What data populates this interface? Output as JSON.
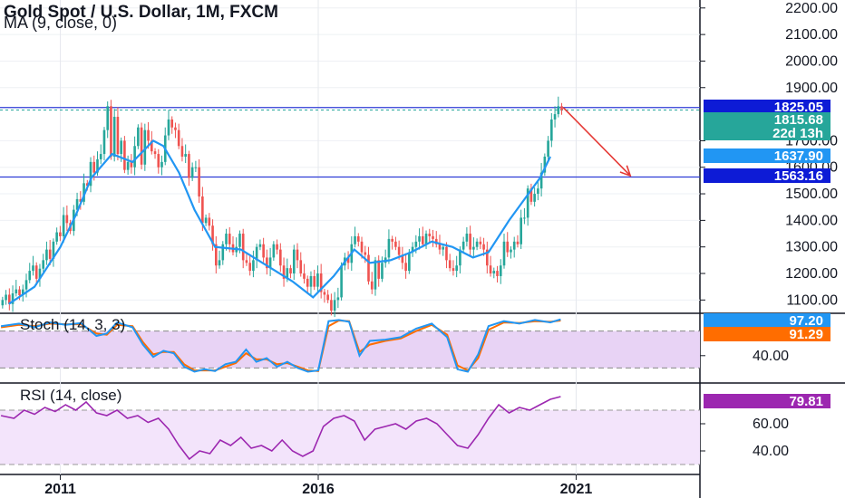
{
  "chart_data": {
    "type": "candlestick",
    "title": "Gold Spot / U.S. Dollar, 1M, FXCM",
    "subtitle": "MA (9, close, 0)",
    "y_ticks": [
      "2200.00",
      "2100.00",
      "2000.00",
      "1900.00",
      "1700.00",
      "1600.00",
      "1500.00",
      "1400.00",
      "1300.00",
      "1200.00",
      "1100.00"
    ],
    "x_ticks": [
      "2011",
      "2016",
      "2021"
    ],
    "ylim": [
      1050,
      2230
    ],
    "xlim": [
      2009.83,
      2023.4
    ],
    "price_tags": [
      {
        "label": "1825.05",
        "value": 1825.05,
        "color": "#0d1bd6"
      },
      {
        "label": "1815.68",
        "value": 1815.68,
        "color": "#26a69a"
      },
      {
        "label": "22d 13h",
        "value": 1768,
        "color": "#26a69a"
      },
      {
        "label": "1637.90",
        "value": 1637.9,
        "color": "#2196f3"
      },
      {
        "label": "1563.16",
        "value": 1563.16,
        "color": "#0d1bd6"
      }
    ],
    "horizontal_lines": [
      {
        "value": 1825.05,
        "color": "#2d3cd6"
      },
      {
        "value": 1563.16,
        "color": "#2d3cd6"
      }
    ],
    "arrow": {
      "from": [
        2020.75,
        1825
      ],
      "to": [
        2022.05,
        1568
      ],
      "color": "#e53935"
    },
    "candles_close": [
      1100,
      1120,
      1085,
      1125,
      1140,
      1118,
      1140,
      1175,
      1210,
      1230,
      1180,
      1218,
      1250,
      1290,
      1255,
      1320,
      1355,
      1340,
      1420,
      1390,
      1360,
      1440,
      1480,
      1470,
      1540,
      1530,
      1620,
      1580,
      1630,
      1650,
      1740,
      1830,
      1640,
      1790,
      1650,
      1700,
      1590,
      1620,
      1600,
      1680,
      1750,
      1610,
      1740,
      1700,
      1660,
      1650,
      1600,
      1620,
      1720,
      1780,
      1750,
      1740,
      1680,
      1640,
      1650,
      1560,
      1600,
      1600,
      1490,
      1390,
      1410,
      1380,
      1310,
      1230,
      1250,
      1310,
      1350,
      1310,
      1280,
      1300,
      1350,
      1250,
      1240,
      1210,
      1250,
      1300,
      1310,
      1260,
      1220,
      1260,
      1310,
      1290,
      1230,
      1180,
      1220,
      1200,
      1290,
      1250,
      1200,
      1180,
      1150,
      1190,
      1150,
      1200,
      1130,
      1120,
      1100,
      1060,
      1100,
      1110,
      1230,
      1260,
      1240,
      1310,
      1340,
      1320,
      1280,
      1270,
      1170,
      1140,
      1250,
      1180,
      1240,
      1260,
      1330,
      1320,
      1300,
      1270,
      1240,
      1210,
      1280,
      1300,
      1320,
      1340,
      1310,
      1350,
      1340,
      1330,
      1310,
      1290,
      1300,
      1250,
      1220,
      1210,
      1230,
      1290,
      1320,
      1350,
      1290,
      1300,
      1320,
      1310,
      1290,
      1230,
      1200,
      1210,
      1190,
      1230,
      1320,
      1280,
      1290,
      1320,
      1310,
      1410,
      1410,
      1520,
      1470,
      1500,
      1520,
      1580,
      1640,
      1700,
      1780,
      1800,
      1830,
      1815.68
    ],
    "ma_points": [
      [
        2010.0,
        1085
      ],
      [
        2010.5,
        1150
      ],
      [
        2011.0,
        1300
      ],
      [
        2011.3,
        1420
      ],
      [
        2011.6,
        1560
      ],
      [
        2012.0,
        1650
      ],
      [
        2012.4,
        1620
      ],
      [
        2012.8,
        1700
      ],
      [
        2013.0,
        1680
      ],
      [
        2013.3,
        1580
      ],
      [
        2013.6,
        1440
      ],
      [
        2014.0,
        1300
      ],
      [
        2014.5,
        1290
      ],
      [
        2015.0,
        1230
      ],
      [
        2015.5,
        1170
      ],
      [
        2015.9,
        1110
      ],
      [
        2016.3,
        1190
      ],
      [
        2016.7,
        1290
      ],
      [
        2017.0,
        1240
      ],
      [
        2017.4,
        1250
      ],
      [
        2017.8,
        1280
      ],
      [
        2018.2,
        1320
      ],
      [
        2018.6,
        1300
      ],
      [
        2019.0,
        1260
      ],
      [
        2019.3,
        1280
      ],
      [
        2019.7,
        1400
      ],
      [
        2020.0,
        1480
      ],
      [
        2020.3,
        1560
      ],
      [
        2020.5,
        1640
      ]
    ],
    "stoch": {
      "title": "Stoch (14, 3, 3)",
      "k_label": "97.20",
      "d_label": "91.29",
      "k_color": "#2196f3",
      "d_color": "#ff6d00",
      "tick": "40.00",
      "band": [
        20,
        80
      ],
      "ylim": [
        0,
        100
      ],
      "k": [
        [
          2009.85,
          88
        ],
        [
          2010.2,
          92
        ],
        [
          2010.5,
          86
        ],
        [
          2010.8,
          94
        ],
        [
          2011.1,
          90
        ],
        [
          2011.4,
          93
        ],
        [
          2011.7,
          72
        ],
        [
          2011.9,
          76
        ],
        [
          2012.1,
          94
        ],
        [
          2012.4,
          86
        ],
        [
          2012.6,
          58
        ],
        [
          2012.8,
          38
        ],
        [
          2013.0,
          48
        ],
        [
          2013.2,
          44
        ],
        [
          2013.4,
          22
        ],
        [
          2013.6,
          14
        ],
        [
          2013.8,
          18
        ],
        [
          2014.0,
          15
        ],
        [
          2014.2,
          26
        ],
        [
          2014.4,
          30
        ],
        [
          2014.6,
          50
        ],
        [
          2014.8,
          30
        ],
        [
          2015.0,
          36
        ],
        [
          2015.2,
          22
        ],
        [
          2015.4,
          30
        ],
        [
          2015.6,
          20
        ],
        [
          2015.8,
          14
        ],
        [
          2016.0,
          16
        ],
        [
          2016.2,
          96
        ],
        [
          2016.4,
          98
        ],
        [
          2016.6,
          95
        ],
        [
          2016.8,
          40
        ],
        [
          2017.0,
          64
        ],
        [
          2017.3,
          66
        ],
        [
          2017.6,
          70
        ],
        [
          2017.9,
          84
        ],
        [
          2018.2,
          92
        ],
        [
          2018.5,
          70
        ],
        [
          2018.7,
          18
        ],
        [
          2018.9,
          14
        ],
        [
          2019.1,
          42
        ],
        [
          2019.3,
          88
        ],
        [
          2019.6,
          96
        ],
        [
          2019.9,
          92
        ],
        [
          2020.2,
          98
        ],
        [
          2020.5,
          94
        ],
        [
          2020.7,
          99
        ]
      ],
      "d": [
        [
          2009.85,
          86
        ],
        [
          2010.2,
          90
        ],
        [
          2010.5,
          88
        ],
        [
          2010.8,
          92
        ],
        [
          2011.1,
          91
        ],
        [
          2011.4,
          91
        ],
        [
          2011.7,
          76
        ],
        [
          2011.9,
          74
        ],
        [
          2012.1,
          90
        ],
        [
          2012.4,
          88
        ],
        [
          2012.6,
          62
        ],
        [
          2012.8,
          42
        ],
        [
          2013.0,
          46
        ],
        [
          2013.2,
          46
        ],
        [
          2013.4,
          26
        ],
        [
          2013.6,
          16
        ],
        [
          2013.8,
          16
        ],
        [
          2014.0,
          16
        ],
        [
          2014.2,
          22
        ],
        [
          2014.4,
          28
        ],
        [
          2014.6,
          44
        ],
        [
          2014.8,
          34
        ],
        [
          2015.0,
          34
        ],
        [
          2015.2,
          26
        ],
        [
          2015.4,
          28
        ],
        [
          2015.6,
          22
        ],
        [
          2015.8,
          16
        ],
        [
          2016.0,
          15
        ],
        [
          2016.2,
          88
        ],
        [
          2016.4,
          97
        ],
        [
          2016.6,
          96
        ],
        [
          2016.8,
          46
        ],
        [
          2017.0,
          58
        ],
        [
          2017.3,
          64
        ],
        [
          2017.6,
          68
        ],
        [
          2017.9,
          80
        ],
        [
          2018.2,
          90
        ],
        [
          2018.5,
          74
        ],
        [
          2018.7,
          24
        ],
        [
          2018.9,
          16
        ],
        [
          2019.1,
          36
        ],
        [
          2019.3,
          82
        ],
        [
          2019.6,
          94
        ],
        [
          2019.9,
          93
        ],
        [
          2020.2,
          96
        ],
        [
          2020.5,
          95
        ],
        [
          2020.7,
          97
        ]
      ]
    },
    "rsi": {
      "title": "RSI (14, close)",
      "label": "79.81",
      "color": "#9c27b0",
      "ticks": [
        "60.00",
        "40.00"
      ],
      "band": [
        30,
        70
      ],
      "ylim": [
        24,
        88
      ],
      "values": [
        [
          2009.85,
          66
        ],
        [
          2010.1,
          64
        ],
        [
          2010.3,
          70
        ],
        [
          2010.5,
          67
        ],
        [
          2010.7,
          72
        ],
        [
          2010.9,
          69
        ],
        [
          2011.1,
          74
        ],
        [
          2011.3,
          70
        ],
        [
          2011.5,
          76
        ],
        [
          2011.7,
          68
        ],
        [
          2011.9,
          66
        ],
        [
          2012.1,
          70
        ],
        [
          2012.3,
          64
        ],
        [
          2012.5,
          66
        ],
        [
          2012.7,
          61
        ],
        [
          2012.9,
          64
        ],
        [
          2013.1,
          56
        ],
        [
          2013.3,
          44
        ],
        [
          2013.5,
          34
        ],
        [
          2013.7,
          40
        ],
        [
          2013.9,
          38
        ],
        [
          2014.1,
          48
        ],
        [
          2014.3,
          44
        ],
        [
          2014.5,
          50
        ],
        [
          2014.7,
          42
        ],
        [
          2014.9,
          44
        ],
        [
          2015.1,
          40
        ],
        [
          2015.3,
          48
        ],
        [
          2015.5,
          40
        ],
        [
          2015.7,
          36
        ],
        [
          2015.9,
          40
        ],
        [
          2016.1,
          58
        ],
        [
          2016.3,
          64
        ],
        [
          2016.5,
          66
        ],
        [
          2016.7,
          62
        ],
        [
          2016.9,
          48
        ],
        [
          2017.1,
          56
        ],
        [
          2017.3,
          58
        ],
        [
          2017.5,
          60
        ],
        [
          2017.7,
          56
        ],
        [
          2017.9,
          62
        ],
        [
          2018.1,
          64
        ],
        [
          2018.3,
          60
        ],
        [
          2018.5,
          52
        ],
        [
          2018.7,
          44
        ],
        [
          2018.9,
          42
        ],
        [
          2019.1,
          52
        ],
        [
          2019.3,
          64
        ],
        [
          2019.5,
          74
        ],
        [
          2019.7,
          68
        ],
        [
          2019.9,
          72
        ],
        [
          2020.1,
          70
        ],
        [
          2020.3,
          74
        ],
        [
          2020.5,
          78
        ],
        [
          2020.7,
          80
        ]
      ]
    }
  }
}
